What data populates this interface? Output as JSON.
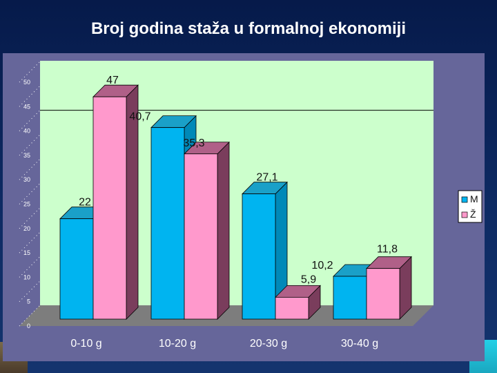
{
  "slide": {
    "title": "Broj godina staža u formalnoj ekonomiji"
  },
  "colors": {
    "series_m": "#00b4f0",
    "series_m_side": "#0089b8",
    "series_m_top": "#1aa0c8",
    "series_z": "#ff99cc",
    "series_z_side": "#7a3d5c",
    "series_z_top": "#b06088",
    "wall": "#ccffcc",
    "floor": "#7d7d7d",
    "panel": "#66669a"
  },
  "chart_data": {
    "type": "bar",
    "title": "",
    "categories": [
      "0-10 g",
      "10-20 g",
      "20-30 g",
      "30-40 g"
    ],
    "series": [
      {
        "name": "M",
        "values": [
          22,
          40.7,
          27.1,
          10.2
        ]
      },
      {
        "name": "Ž",
        "values": [
          47,
          35.3,
          5.9,
          11.8
        ]
      }
    ],
    "data_labels": [
      [
        "22",
        "40,7",
        "27,1",
        "10,2"
      ],
      [
        "47",
        "35,3",
        "5,9",
        "11,8"
      ]
    ],
    "ylim": [
      0,
      50
    ],
    "yticks": [
      0,
      5,
      10,
      15,
      20,
      25,
      30,
      35,
      40,
      45,
      50
    ],
    "ytick_labels": [
      "0",
      "5",
      "10",
      "15",
      "20",
      "25",
      "30",
      "35",
      "40",
      "45",
      "50"
    ],
    "xlabel": "",
    "ylabel": "",
    "legend_position": "right",
    "gridline_at": 40,
    "style": "3d-clustered"
  }
}
